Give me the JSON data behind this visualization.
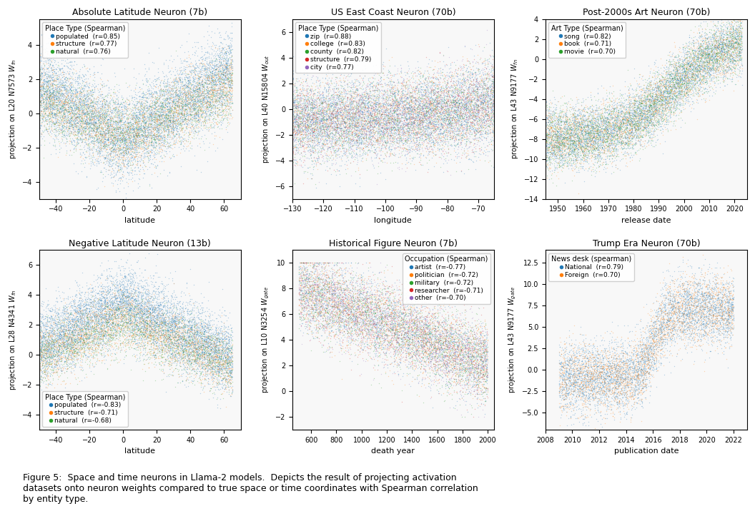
{
  "plots": [
    {
      "title": "Absolute Latitude Neuron (7b)",
      "ylabel": "projection on L20 N7573 $W_{fn}$",
      "xlabel": "latitude",
      "xlim": [
        -50,
        70
      ],
      "ylim": [
        -5,
        5.5
      ],
      "legend_title": "Place Type (Spearman)",
      "legend_items": [
        {
          "label": "populated  (r=0.85)",
          "color": "#1f77b4"
        },
        {
          "label": "structure  (r=0.77)",
          "color": "#ff7f0e"
        },
        {
          "label": "natural  (r=0.76)",
          "color": "#2ca02c"
        }
      ],
      "series": [
        {
          "color": "#1f77b4",
          "x_range": [
            -50,
            65
          ],
          "y_func": "abs_lat_populated",
          "n": 8000
        },
        {
          "color": "#ff7f0e",
          "x_range": [
            -50,
            65
          ],
          "y_func": "abs_lat_structure",
          "n": 3000
        },
        {
          "color": "#2ca02c",
          "x_range": [
            -50,
            65
          ],
          "y_func": "abs_lat_natural",
          "n": 2000
        }
      ]
    },
    {
      "title": "US East Coast Neuron (70b)",
      "ylabel": "projection on L40 N15804 $W_{out}$",
      "xlabel": "longitude",
      "xlim": [
        -130,
        -65
      ],
      "ylim": [
        -7,
        7
      ],
      "legend_title": "Place Type (Spearman)",
      "legend_items": [
        {
          "label": "zip  (r=0.88)",
          "color": "#1f77b4"
        },
        {
          "label": "college  (r=0.83)",
          "color": "#ff7f0e"
        },
        {
          "label": "county  (r=0.82)",
          "color": "#2ca02c"
        },
        {
          "label": "structure  (r=0.79)",
          "color": "#d62728"
        },
        {
          "label": "city  (r=0.77)",
          "color": "#9467bd"
        }
      ],
      "series": [
        {
          "color": "#1f77b4",
          "x_range": [
            -130,
            -65
          ],
          "y_func": "east_coast",
          "n": 6000
        },
        {
          "color": "#ff7f0e",
          "x_range": [
            -130,
            -65
          ],
          "y_func": "east_coast",
          "n": 2000
        },
        {
          "color": "#2ca02c",
          "x_range": [
            -130,
            -65
          ],
          "y_func": "east_coast",
          "n": 2000
        },
        {
          "color": "#d62728",
          "x_range": [
            -130,
            -65
          ],
          "y_func": "east_coast",
          "n": 1500
        },
        {
          "color": "#9467bd",
          "x_range": [
            -130,
            -65
          ],
          "y_func": "east_coast",
          "n": 2000
        }
      ]
    },
    {
      "title": "Post-2000s Art Neuron (70b)",
      "ylabel": "projection on L43 N9177 $W_{fn}$",
      "xlabel": "release date",
      "xlim": [
        1945,
        2025
      ],
      "ylim": [
        -14,
        4
      ],
      "legend_title": "Art Type (Spearman)",
      "legend_items": [
        {
          "label": "song  (r=0.82)",
          "color": "#1f77b4"
        },
        {
          "label": "book  (r=0.71)",
          "color": "#ff7f0e"
        },
        {
          "label": "movie  (r=0.70)",
          "color": "#2ca02c"
        }
      ],
      "series": [
        {
          "color": "#1f77b4",
          "x_range": [
            1945,
            2025
          ],
          "y_func": "art_neuron",
          "n": 6000
        },
        {
          "color": "#ff7f0e",
          "x_range": [
            1945,
            2025
          ],
          "y_func": "art_neuron",
          "n": 3000
        },
        {
          "color": "#2ca02c",
          "x_range": [
            1945,
            2025
          ],
          "y_func": "art_neuron",
          "n": 3000
        }
      ]
    },
    {
      "title": "Negative Latitude Neuron (13b)",
      "ylabel": "projection on L28 N4341 $W_{fn}$",
      "xlabel": "latitude",
      "xlim": [
        -50,
        70
      ],
      "ylim": [
        -5,
        7
      ],
      "legend_title": "Place Type (Spearman)",
      "legend_items": [
        {
          "label": "populated  (r=-0.83)",
          "color": "#1f77b4"
        },
        {
          "label": "structure  (r=-0.71)",
          "color": "#ff7f0e"
        },
        {
          "label": "natural  (r=-0.68)",
          "color": "#2ca02c"
        }
      ],
      "series": [
        {
          "color": "#1f77b4",
          "x_range": [
            -50,
            65
          ],
          "y_func": "neg_lat_populated",
          "n": 8000
        },
        {
          "color": "#ff7f0e",
          "x_range": [
            -50,
            65
          ],
          "y_func": "neg_lat_structure",
          "n": 3000
        },
        {
          "color": "#2ca02c",
          "x_range": [
            -50,
            65
          ],
          "y_func": "neg_lat_natural",
          "n": 2000
        }
      ]
    },
    {
      "title": "Historical Figure Neuron (7b)",
      "ylabel": "projection on L10 N3254 $W_{gate}$",
      "xlabel": "death year",
      "xlim": [
        450,
        2050
      ],
      "ylim": [
        -3,
        11
      ],
      "legend_title": "Occupation (Spearman)",
      "legend_items": [
        {
          "label": "artist  (r=-0.77)",
          "color": "#1f77b4"
        },
        {
          "label": "politician  (r=-0.72)",
          "color": "#ff7f0e"
        },
        {
          "label": "military  (r=-0.72)",
          "color": "#2ca02c"
        },
        {
          "label": "researcher  (r=-0.71)",
          "color": "#d62728"
        },
        {
          "label": "other  (r=-0.70)",
          "color": "#9467bd"
        }
      ],
      "series": [
        {
          "color": "#1f77b4",
          "x_range": [
            500,
            2000
          ],
          "y_func": "hist_figure",
          "n": 3000
        },
        {
          "color": "#ff7f0e",
          "x_range": [
            500,
            2000
          ],
          "y_func": "hist_figure",
          "n": 2000
        },
        {
          "color": "#2ca02c",
          "x_range": [
            500,
            2000
          ],
          "y_func": "hist_figure",
          "n": 2000
        },
        {
          "color": "#d62728",
          "x_range": [
            500,
            2000
          ],
          "y_func": "hist_figure",
          "n": 1500
        },
        {
          "color": "#9467bd",
          "x_range": [
            500,
            2000
          ],
          "y_func": "hist_figure",
          "n": 2000
        }
      ]
    },
    {
      "title": "Trump Era Neuron (70b)",
      "ylabel": "projection on L43 N9177 $W_{gate}$",
      "xlabel": "publication date",
      "xlim": [
        2008,
        2023
      ],
      "ylim": [
        -7,
        14
      ],
      "legend_title": "News desk (spearman)",
      "legend_items": [
        {
          "label": "National  (r=0.79)",
          "color": "#1f77b4"
        },
        {
          "label": "Foreign  (r=0.70)",
          "color": "#ff7f0e"
        }
      ],
      "series": [
        {
          "color": "#1f77b4",
          "x_range": [
            2009,
            2022
          ],
          "y_func": "trump_era",
          "n": 5000
        },
        {
          "color": "#ff7f0e",
          "x_range": [
            2009,
            2022
          ],
          "y_func": "trump_era",
          "n": 3000
        }
      ]
    }
  ],
  "caption": "Figure 5:  Space and time neurons in Llama-2 models.  Depicts the result of projecting activation\ndatasets onto neuron weights compared to true space or time coordinates with Spearman correlation\nby entity type.",
  "bg_color": "#ffffff",
  "point_size": 1.0,
  "point_alpha": 0.3
}
